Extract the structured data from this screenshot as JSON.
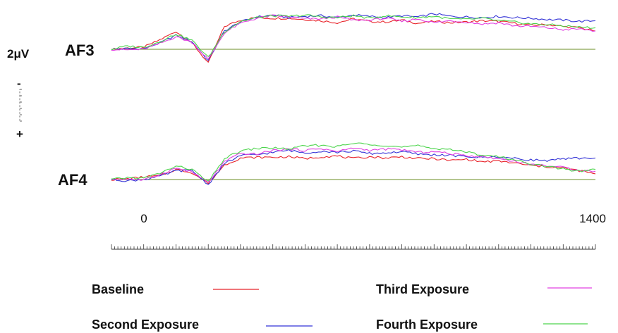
{
  "chart_data": {
    "type": "line",
    "scale_label": "2μV",
    "polarity": {
      "negative": "-",
      "positive": "+"
    },
    "x_tick_labels": [
      "0",
      "1400"
    ],
    "xlim": [
      -100,
      1400
    ],
    "ylim": [
      -4,
      6
    ],
    "y_unit": "μV",
    "channels": [
      {
        "label": "AF3",
        "x": [
          -100,
          -50,
          0,
          50,
          100,
          150,
          200,
          250,
          300,
          350,
          400,
          450,
          500,
          550,
          600,
          650,
          700,
          750,
          800,
          850,
          900,
          950,
          1000,
          1050,
          1100,
          1150,
          1200,
          1250,
          1300,
          1350,
          1400
        ],
        "series": [
          {
            "name": "Baseline",
            "color": "#e8232a",
            "values": [
              0,
              0.2,
              0.3,
              1.5,
              2.8,
              1.0,
              -2.2,
              3.6,
              4.6,
              5.0,
              4.9,
              4.9,
              4.7,
              4.5,
              4.2,
              4.8,
              4.4,
              4.3,
              4.6,
              4.1,
              4.4,
              4.2,
              4.3,
              4.5,
              4.4,
              4.1,
              3.8,
              3.9,
              3.6,
              3.4,
              2.9
            ]
          },
          {
            "name": "Second Exposure",
            "color": "#3333d6",
            "values": [
              0,
              0.1,
              0.1,
              1.0,
              2.2,
              1.2,
              -1.8,
              2.9,
              4.3,
              5.1,
              5.4,
              5.0,
              5.2,
              5.3,
              5.0,
              5.4,
              5.2,
              5.0,
              5.3,
              5.1,
              5.6,
              5.2,
              5.1,
              5.0,
              5.2,
              5.0,
              4.9,
              4.7,
              4.6,
              4.4,
              4.5
            ]
          },
          {
            "name": "Third Exposure",
            "color": "#e040e0",
            "values": [
              0,
              -0.1,
              0.0,
              0.9,
              2.0,
              1.1,
              -1.6,
              2.6,
              4.1,
              4.9,
              5.3,
              5.1,
              4.8,
              4.8,
              5.1,
              4.6,
              4.6,
              4.9,
              4.4,
              4.8,
              4.2,
              4.5,
              4.3,
              4.0,
              4.2,
              3.7,
              3.6,
              3.4,
              3.1,
              3.2,
              2.9
            ]
          },
          {
            "name": "Fourth Exposure",
            "color": "#4cd44c",
            "values": [
              0,
              0.5,
              0.3,
              1.2,
              2.4,
              1.4,
              -1.3,
              2.8,
              4.4,
              5.0,
              5.3,
              5.2,
              5.4,
              5.1,
              5.0,
              5.3,
              4.9,
              5.3,
              5.1,
              5.0,
              5.2,
              4.8,
              4.7,
              4.9,
              4.5,
              4.3,
              4.0,
              3.9,
              3.7,
              3.5,
              3.4
            ]
          }
        ]
      },
      {
        "label": "AF4",
        "x": [
          -100,
          -50,
          0,
          50,
          100,
          150,
          200,
          250,
          300,
          350,
          400,
          450,
          500,
          550,
          600,
          650,
          700,
          750,
          800,
          850,
          900,
          950,
          1000,
          1050,
          1100,
          1150,
          1200,
          1250,
          1300,
          1350,
          1400
        ],
        "series": [
          {
            "name": "Baseline",
            "color": "#e8232a",
            "values": [
              0,
              0.1,
              0.4,
              0.6,
              1.6,
              1.1,
              -0.6,
              2.3,
              3.4,
              3.5,
              3.5,
              3.6,
              3.3,
              3.6,
              3.7,
              3.3,
              3.6,
              3.4,
              3.6,
              3.3,
              3.3,
              3.0,
              3.2,
              2.8,
              2.9,
              2.6,
              2.2,
              2.0,
              1.8,
              1.4,
              0.9
            ]
          },
          {
            "name": "Second Exposure",
            "color": "#3333d6",
            "values": [
              0,
              -0.2,
              0.0,
              0.5,
              1.4,
              1.4,
              -0.8,
              2.5,
              3.8,
              3.9,
              4.3,
              4.6,
              4.2,
              4.5,
              4.3,
              4.5,
              4.1,
              4.2,
              4.4,
              4.0,
              3.9,
              3.8,
              3.6,
              3.5,
              3.6,
              3.3,
              3.1,
              3.0,
              3.2,
              3.4,
              3.4
            ]
          },
          {
            "name": "Third Exposure",
            "color": "#e040e0",
            "values": [
              0,
              0.1,
              -0.1,
              0.8,
              1.8,
              1.2,
              -0.5,
              2.8,
              4.1,
              4.0,
              4.6,
              4.8,
              4.6,
              4.9,
              4.4,
              5.0,
              4.6,
              4.8,
              4.7,
              4.3,
              4.4,
              4.1,
              3.8,
              3.6,
              3.3,
              2.9,
              2.4,
              2.2,
              1.9,
              1.5,
              1.3
            ]
          },
          {
            "name": "Fourth Exposure",
            "color": "#4cd44c",
            "values": [
              0,
              0.3,
              0.2,
              1.0,
              2.1,
              1.6,
              -0.4,
              3.3,
              4.5,
              4.9,
              5.0,
              4.8,
              5.3,
              5.4,
              5.2,
              5.7,
              5.6,
              5.4,
              5.1,
              5.3,
              4.9,
              4.8,
              4.3,
              3.9,
              3.6,
              3.1,
              2.5,
              2.0,
              1.7,
              1.3,
              1.6
            ]
          }
        ]
      }
    ],
    "legend": [
      {
        "name": "Baseline",
        "color": "#e8232a"
      },
      {
        "name": "Third Exposure",
        "color": "#e040e0"
      },
      {
        "name": "Second Exposure",
        "color": "#3333d6"
      },
      {
        "name": "Fourth Exposure",
        "color": "#4cd44c"
      }
    ],
    "baseline_color": "#6b8e23",
    "grid": false
  }
}
